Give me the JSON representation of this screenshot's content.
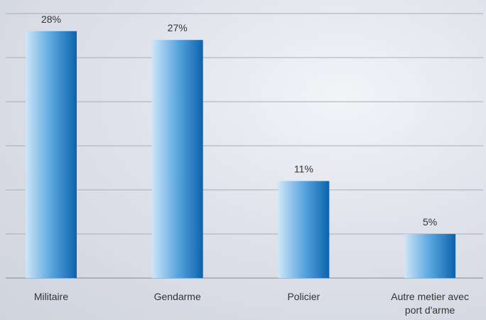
{
  "chart_data": {
    "type": "bar",
    "categories": [
      "Militaire",
      "Gendarme",
      "Policier",
      "Autre metier avec port d'arme"
    ],
    "values": [
      28,
      27,
      11,
      5
    ],
    "value_labels": [
      "28%",
      "27%",
      "11%",
      "5%"
    ],
    "color": "#1477c4",
    "ylim": [
      0,
      30
    ],
    "yticks": [
      0,
      5,
      10,
      15,
      20,
      25,
      30
    ],
    "grid": true
  }
}
